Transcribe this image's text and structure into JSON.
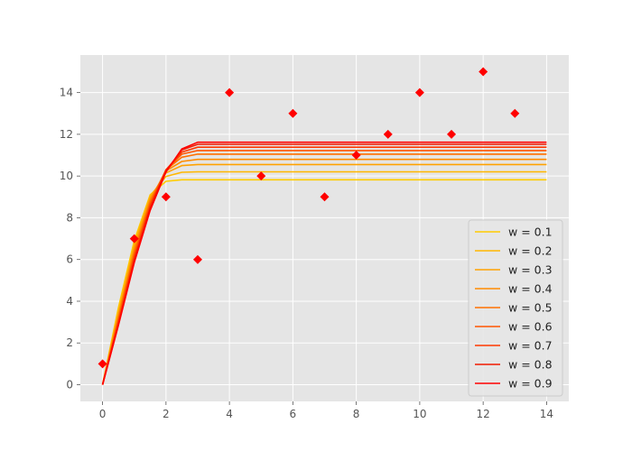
{
  "chart_data": {
    "type": "line",
    "title": "",
    "xlabel": "",
    "ylabel": "",
    "xlim": [
      -0.7,
      14.7
    ],
    "ylim": [
      -0.8,
      15.8
    ],
    "x_ticks": [
      0,
      2,
      4,
      6,
      8,
      10,
      12,
      14
    ],
    "y_ticks": [
      0,
      2,
      4,
      6,
      8,
      10,
      12,
      14
    ],
    "grid": true,
    "legend_position": "lower-right",
    "colors": {
      "background": "#e5e5e5",
      "grid": "#ffffff",
      "scatter": "#ff0000"
    },
    "scatter": {
      "name": "",
      "marker": "diamond",
      "color": "#ff0000",
      "x": [
        0,
        1,
        2,
        3,
        4,
        5,
        6,
        7,
        8,
        9,
        10,
        11,
        12,
        13
      ],
      "y": [
        1,
        7,
        9,
        6,
        14,
        10,
        13,
        9,
        11,
        12,
        14,
        12,
        15,
        13
      ]
    },
    "series": [
      {
        "name": "w = 0.1",
        "color": "#ffcc00",
        "x": [
          0,
          0.5,
          1,
          1.5,
          2,
          2.5,
          3,
          14
        ],
        "y": [
          0,
          3.7,
          6.9,
          9.1,
          9.75,
          9.82,
          9.82,
          9.82
        ]
      },
      {
        "name": "w = 0.2",
        "color": "#ffb700",
        "x": [
          0,
          0.5,
          1,
          1.5,
          2,
          2.5,
          3,
          14
        ],
        "y": [
          0,
          3.55,
          6.75,
          9.05,
          9.98,
          10.18,
          10.2,
          10.2
        ]
      },
      {
        "name": "w = 0.3",
        "color": "#ffa200",
        "x": [
          0,
          0.5,
          1,
          1.5,
          2,
          2.5,
          3,
          14
        ],
        "y": [
          0,
          3.4,
          6.6,
          8.95,
          10.15,
          10.5,
          10.55,
          10.55
        ]
      },
      {
        "name": "w = 0.4",
        "color": "#ff8c00",
        "x": [
          0,
          0.5,
          1,
          1.5,
          2,
          2.5,
          3,
          14
        ],
        "y": [
          0,
          3.3,
          6.45,
          8.85,
          10.25,
          10.7,
          10.8,
          10.8
        ]
      },
      {
        "name": "w = 0.5",
        "color": "#ff7000",
        "x": [
          0,
          0.5,
          1,
          1.5,
          2,
          2.5,
          3,
          14
        ],
        "y": [
          0,
          3.2,
          6.3,
          8.75,
          10.3,
          10.9,
          11.05,
          11.05
        ]
      },
      {
        "name": "w = 0.6",
        "color": "#ff5500",
        "x": [
          0,
          0.5,
          1,
          1.5,
          2,
          2.5,
          3,
          14
        ],
        "y": [
          0,
          3.1,
          6.2,
          8.65,
          10.3,
          11.05,
          11.22,
          11.22
        ]
      },
      {
        "name": "w = 0.7",
        "color": "#ff3800",
        "x": [
          0,
          0.5,
          1,
          1.5,
          2,
          2.5,
          3,
          14
        ],
        "y": [
          0,
          3.0,
          6.05,
          8.55,
          10.3,
          11.15,
          11.38,
          11.38
        ]
      },
      {
        "name": "w = 0.8",
        "color": "#f01a00",
        "x": [
          0,
          0.5,
          1,
          1.5,
          2,
          2.5,
          3,
          14
        ],
        "y": [
          0,
          2.9,
          5.95,
          8.45,
          10.25,
          11.25,
          11.52,
          11.52
        ]
      },
      {
        "name": "w = 0.9",
        "color": "#ff0000",
        "x": [
          0,
          0.5,
          1,
          1.5,
          2,
          2.5,
          3,
          14
        ],
        "y": [
          0,
          2.85,
          5.85,
          8.35,
          10.2,
          11.3,
          11.62,
          11.62
        ]
      }
    ]
  }
}
